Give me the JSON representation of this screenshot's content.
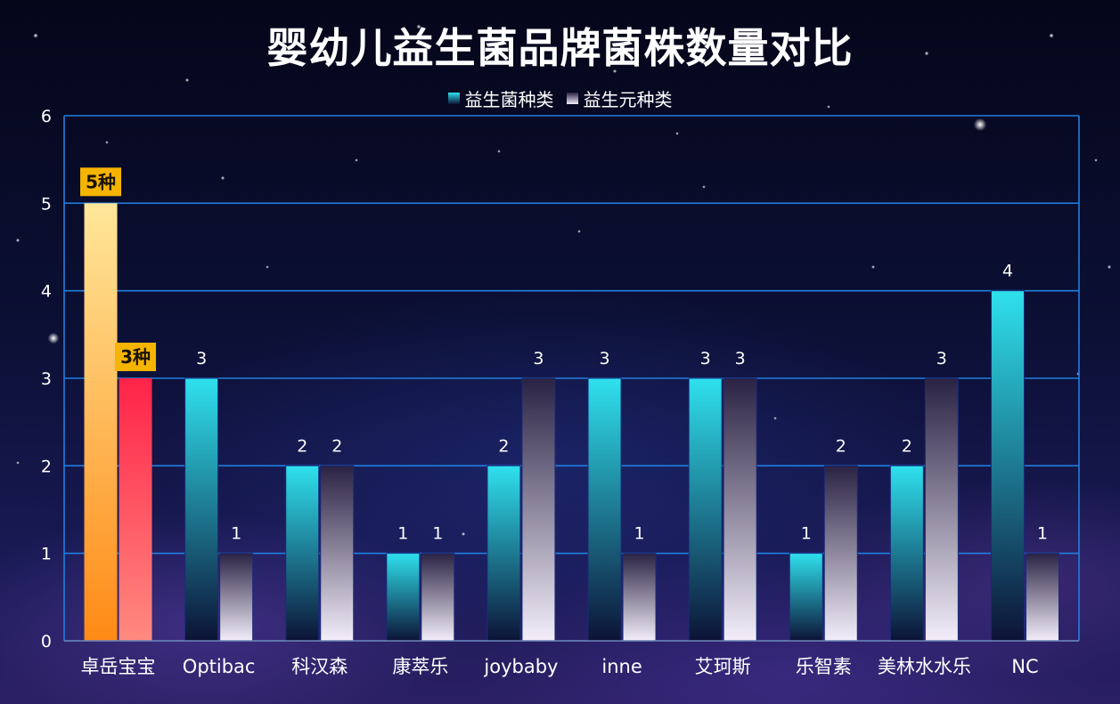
{
  "chart_data": {
    "type": "bar",
    "title": "婴幼儿益生菌品牌菌株数量对比",
    "categories": [
      "卓岳宝宝",
      "Optibac",
      "科汉森",
      "康萃乐",
      "joybaby",
      "inne",
      "艾珂斯",
      "乐智素",
      "美林水水乐",
      "NC"
    ],
    "series": [
      {
        "name": "益生菌种类",
        "values": [
          5,
          3,
          2,
          1,
          2,
          3,
          3,
          1,
          2,
          4
        ]
      },
      {
        "name": "益生元种类",
        "values": [
          3,
          1,
          2,
          1,
          3,
          1,
          3,
          2,
          3,
          1
        ]
      }
    ],
    "ylim": [
      0,
      6
    ],
    "yticks": [
      0,
      1,
      2,
      3,
      4,
      5,
      6
    ],
    "grid": true,
    "legend_position": "top",
    "highlight": {
      "category": "卓岳宝宝",
      "labels": [
        "5种",
        "3种"
      ]
    },
    "colors": {
      "series1_top": "#2fe1ee",
      "series1_bottom": "#0c1336",
      "series2_top": "#2a2243",
      "series2_bottom": "#f3eefa",
      "highlight1_top": "#ffe79a",
      "highlight1_bottom": "#ff8a16",
      "highlight2_top": "#ff2348",
      "highlight2_bottom": "#ff8a80",
      "highlight_label_bg": "#f5b400",
      "grid": "#1f7fe0",
      "text": "#ffffff"
    }
  }
}
